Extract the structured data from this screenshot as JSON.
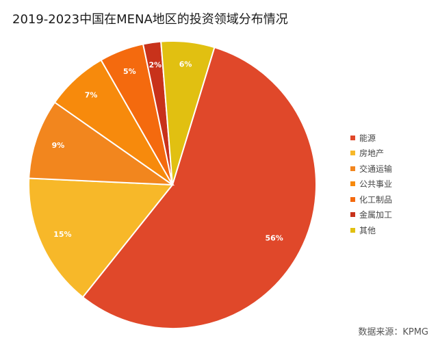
{
  "title": "2019-2023中国在MENA地区的投资领域分布情况",
  "source": "数据来源：KPMG",
  "chart_data": {
    "type": "pie",
    "title": "2019-2023中国在MENA地区的投资领域分布情况",
    "unit": "%",
    "legend_position": "right",
    "slices": [
      {
        "name": "能源",
        "value": 56,
        "label": "56%",
        "color": "#e0482a"
      },
      {
        "name": "房地产",
        "value": 15,
        "label": "15%",
        "color": "#f7b829"
      },
      {
        "name": "交通运输",
        "value": 9,
        "label": "9%",
        "color": "#f2861e"
      },
      {
        "name": "公共事业",
        "value": 7,
        "label": "7%",
        "color": "#f78a0c"
      },
      {
        "name": "化工制品",
        "value": 5,
        "label": "5%",
        "color": "#f46a0e"
      },
      {
        "name": "金属加工",
        "value": 2,
        "label": "2%",
        "color": "#c8321b"
      },
      {
        "name": "其他",
        "value": 6,
        "label": "6%",
        "color": "#e1c011"
      }
    ]
  }
}
